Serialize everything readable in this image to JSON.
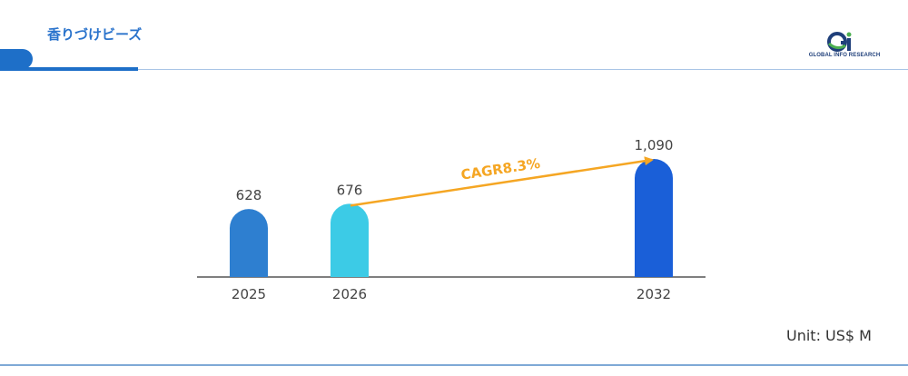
{
  "header": {
    "title": "香りづけビーズ"
  },
  "logo": {
    "text": "GLOBAL INFO RESEARCH",
    "mark": "Qi"
  },
  "unit_label": "Unit: US$ M",
  "colors": {
    "primary": "#1e6fc8",
    "cagr_arrow": "#f5a623"
  },
  "chart_data": {
    "type": "bar",
    "categories": [
      "2025",
      "2026",
      "2032"
    ],
    "values": [
      628,
      676,
      1090
    ],
    "value_labels": [
      "628",
      "676",
      "1,090"
    ],
    "bar_colors": [
      "#2e7fd0",
      "#3ccbe6",
      "#1a5fd8"
    ],
    "annotation": {
      "text": "CAGR8.3%",
      "from": "2026",
      "to": "2032"
    },
    "title": "",
    "xlabel": "",
    "ylabel": ""
  }
}
